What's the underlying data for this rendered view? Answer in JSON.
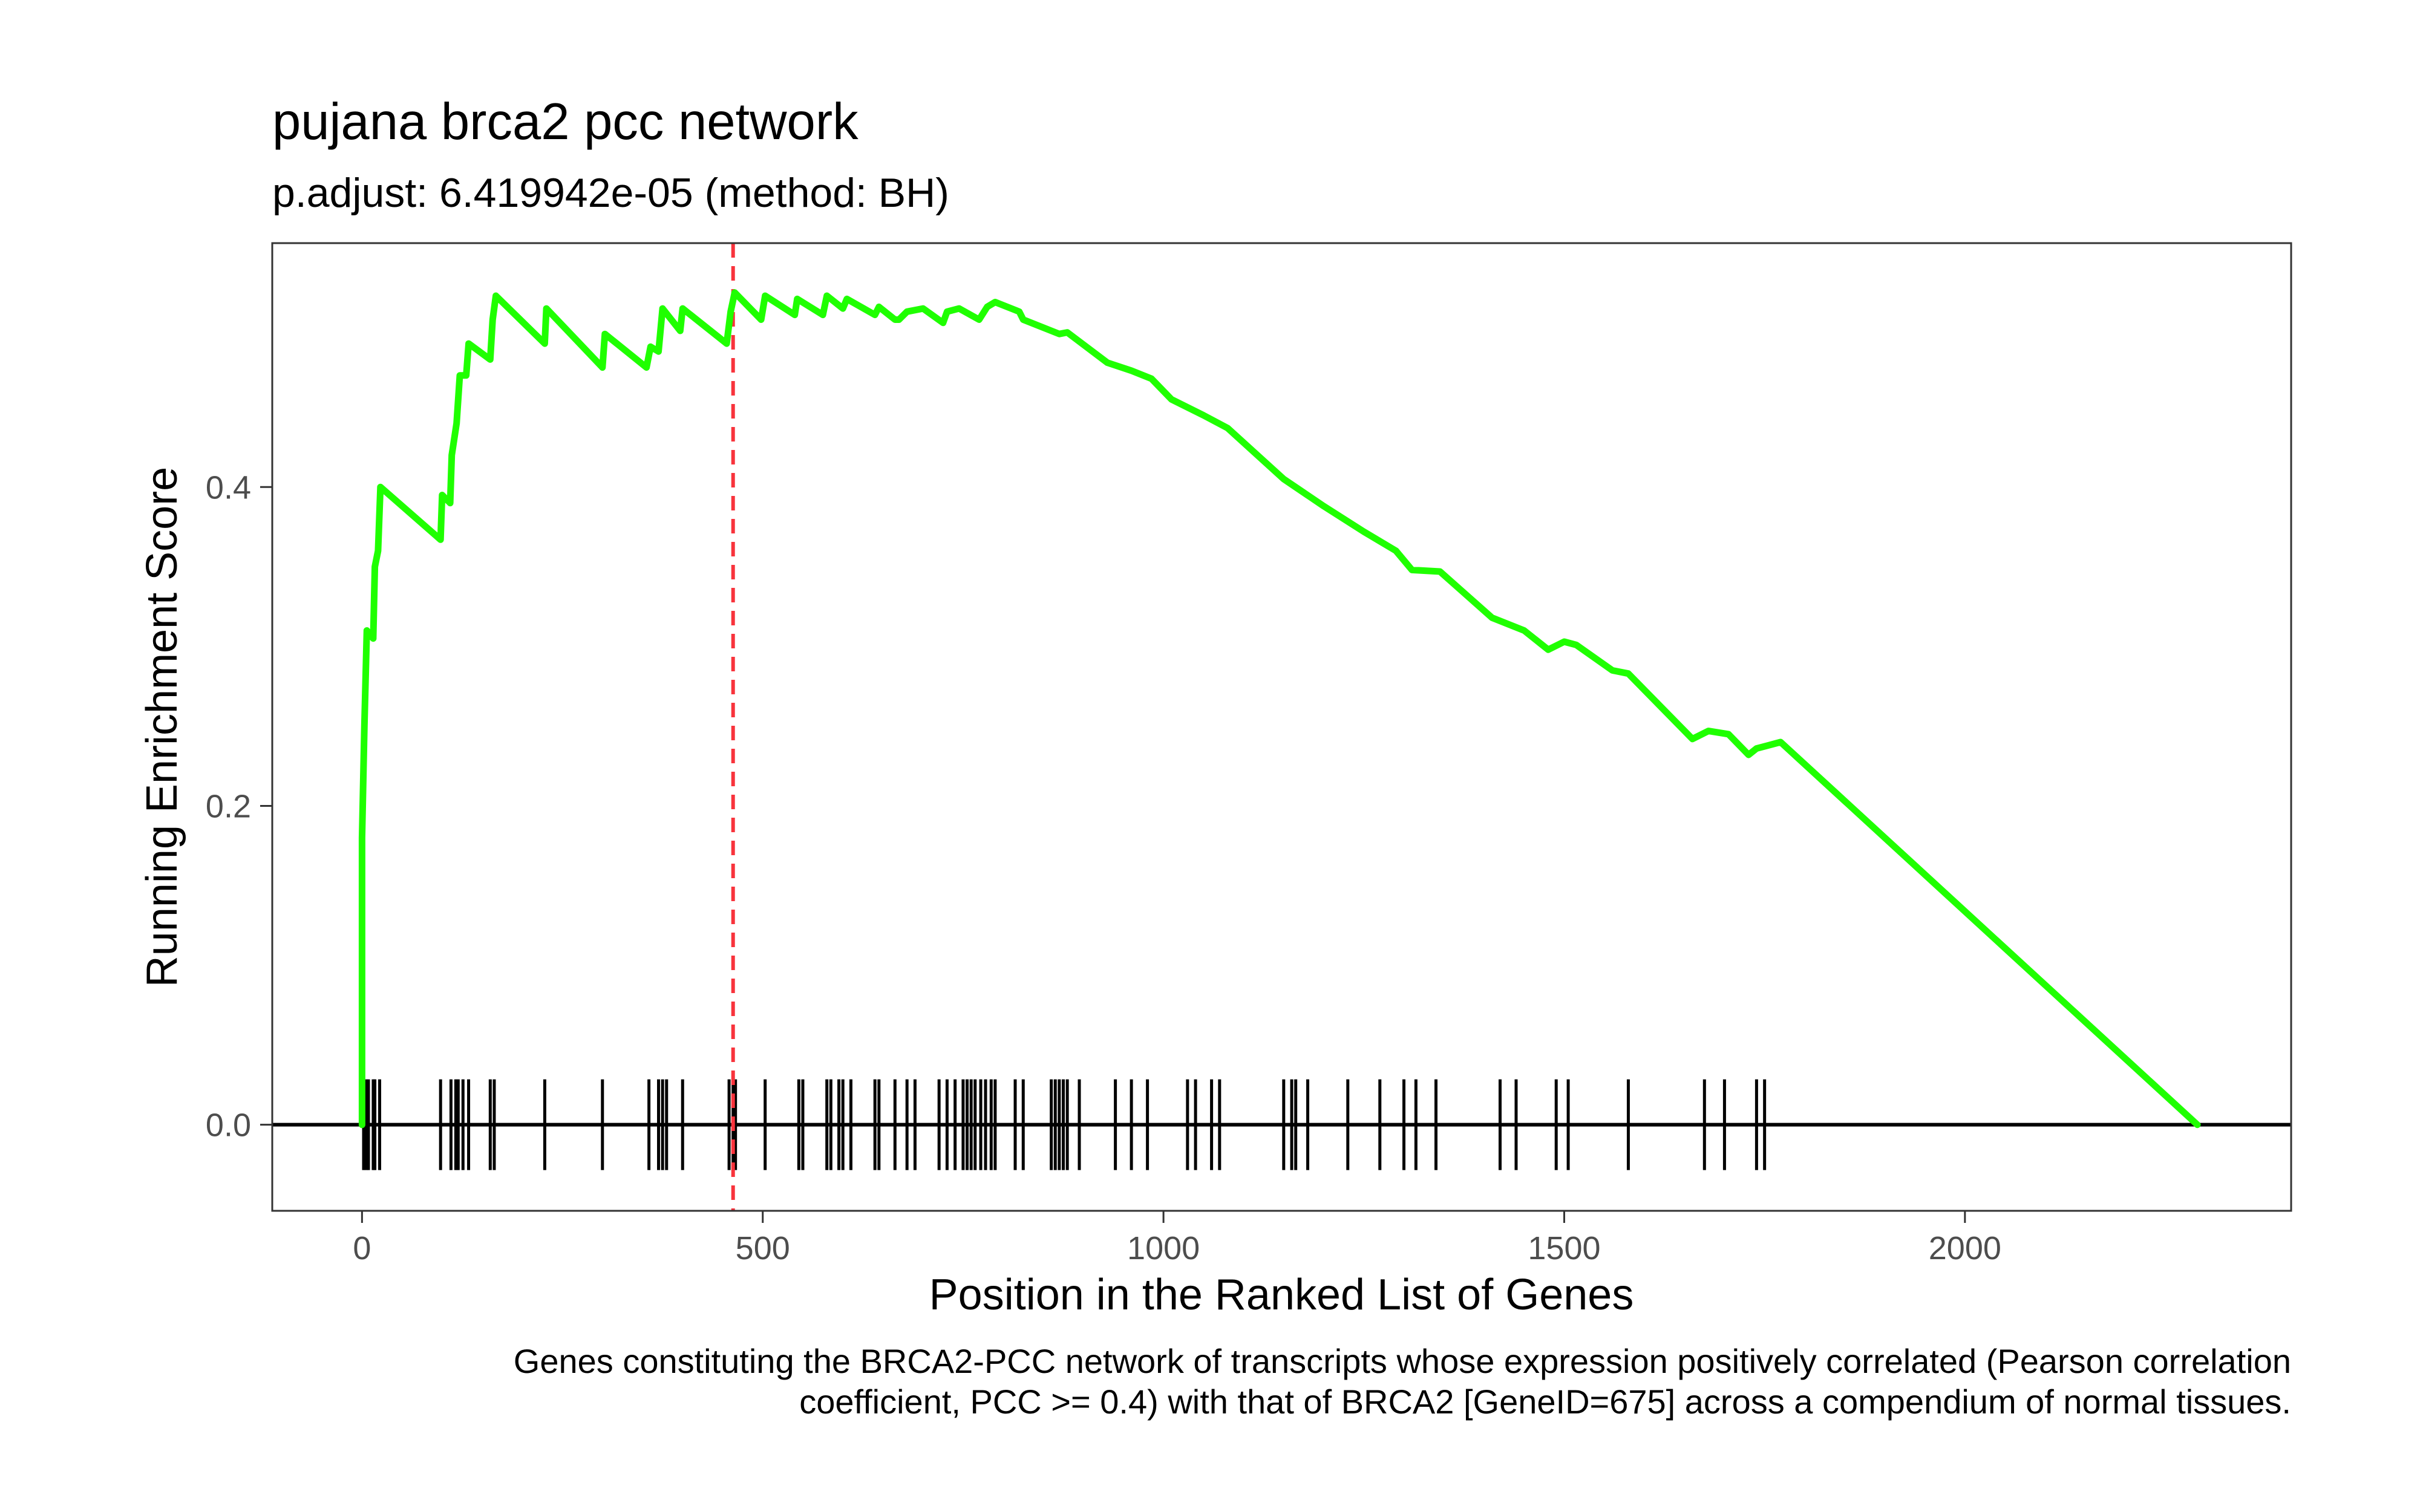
{
  "chart_data": {
    "type": "line",
    "title": "pujana brca2 pcc network",
    "subtitle": "p.adjust: 6.419942e-05 (method: BH)",
    "xlabel": "Position in the Ranked List of Genes",
    "ylabel": "Running Enrichment Score",
    "caption_lines": [
      "Genes constituting the BRCA2-PCC network of transcripts whose expression positively correlated (Pearson correlation",
      "coefficient, PCC >= 0.4) with that of BRCA2 [GeneID=675] across a compendium of normal tissues."
    ],
    "xlim": [
      -112,
      2407
    ],
    "ylim": [
      -0.054,
      0.553
    ],
    "x_ticks": [
      0,
      500,
      1000,
      1500,
      2000
    ],
    "x_tick_labels": [
      "0",
      "500",
      "1000",
      "1500",
      "2000"
    ],
    "y_ticks": [
      0.0,
      0.2,
      0.4
    ],
    "y_tick_labels": [
      "0.0",
      "0.2",
      "0.4"
    ],
    "grid": false,
    "colors": {
      "es_line": "#1FFF00",
      "peak_marker": "#F8333C",
      "hits": "#000000",
      "baseline": "#000000",
      "panel_border": "#333333"
    },
    "peak_position": 463,
    "series": [
      {
        "values": [
          [
            0,
            0.0
          ],
          [
            0,
            0.18
          ],
          [
            3,
            0.25
          ],
          [
            6,
            0.31
          ],
          [
            14,
            0.305
          ],
          [
            16,
            0.35
          ],
          [
            20,
            0.36
          ],
          [
            23,
            0.4
          ],
          [
            98,
            0.367
          ],
          [
            100,
            0.395
          ],
          [
            110,
            0.39
          ],
          [
            112,
            0.42
          ],
          [
            118,
            0.44
          ],
          [
            122,
            0.47
          ],
          [
            130,
            0.47
          ],
          [
            133,
            0.49
          ],
          [
            160,
            0.48
          ],
          [
            163,
            0.505
          ],
          [
            167,
            0.52
          ],
          [
            228,
            0.49
          ],
          [
            230,
            0.512
          ],
          [
            300,
            0.475
          ],
          [
            303,
            0.496
          ],
          [
            355,
            0.475
          ],
          [
            360,
            0.488
          ],
          [
            370,
            0.485
          ],
          [
            375,
            0.512
          ],
          [
            397,
            0.498
          ],
          [
            400,
            0.512
          ],
          [
            455,
            0.49
          ],
          [
            460,
            0.51
          ],
          [
            465,
            0.522
          ],
          [
            498,
            0.505
          ],
          [
            503,
            0.52
          ],
          [
            540,
            0.508
          ],
          [
            543,
            0.518
          ],
          [
            575,
            0.508
          ],
          [
            580,
            0.52
          ],
          [
            600,
            0.512
          ],
          [
            605,
            0.518
          ],
          [
            640,
            0.508
          ],
          [
            645,
            0.513
          ],
          [
            665,
            0.505
          ],
          [
            670,
            0.505
          ],
          [
            680,
            0.51
          ],
          [
            700,
            0.512
          ],
          [
            725,
            0.503
          ],
          [
            730,
            0.51
          ],
          [
            745,
            0.512
          ],
          [
            770,
            0.505
          ],
          [
            780,
            0.513
          ],
          [
            790,
            0.516
          ],
          [
            820,
            0.51
          ],
          [
            825,
            0.505
          ],
          [
            870,
            0.496
          ],
          [
            880,
            0.497
          ],
          [
            930,
            0.478
          ],
          [
            960,
            0.473
          ],
          [
            985,
            0.468
          ],
          [
            1010,
            0.455
          ],
          [
            1050,
            0.445
          ],
          [
            1080,
            0.437
          ],
          [
            1150,
            0.405
          ],
          [
            1200,
            0.388
          ],
          [
            1250,
            0.372
          ],
          [
            1290,
            0.36
          ],
          [
            1310,
            0.348
          ],
          [
            1345,
            0.347
          ],
          [
            1410,
            0.318
          ],
          [
            1450,
            0.31
          ],
          [
            1480,
            0.298
          ],
          [
            1500,
            0.303
          ],
          [
            1515,
            0.301
          ],
          [
            1560,
            0.285
          ],
          [
            1580,
            0.283
          ],
          [
            1660,
            0.242
          ],
          [
            1680,
            0.247
          ],
          [
            1705,
            0.245
          ],
          [
            1730,
            0.232
          ],
          [
            1740,
            0.236
          ],
          [
            1755,
            0.238
          ],
          [
            1770,
            0.24
          ],
          [
            2290,
            0.0
          ]
        ]
      }
    ],
    "hit_positions": [
      2,
      5,
      8,
      14,
      16,
      22,
      98,
      111,
      117,
      120,
      126,
      133,
      160,
      165,
      228,
      300,
      358,
      370,
      375,
      380,
      400,
      458,
      463,
      466,
      503,
      545,
      550,
      580,
      585,
      595,
      600,
      610,
      640,
      645,
      665,
      680,
      690,
      720,
      730,
      740,
      750,
      755,
      760,
      765,
      772,
      778,
      785,
      790,
      815,
      825,
      860,
      865,
      870,
      875,
      880,
      895,
      940,
      960,
      980,
      1030,
      1040,
      1060,
      1070,
      1150,
      1160,
      1165,
      1180,
      1230,
      1270,
      1300,
      1315,
      1340,
      1420,
      1440,
      1490,
      1505,
      1580,
      1675,
      1700,
      1740,
      1750
    ]
  }
}
